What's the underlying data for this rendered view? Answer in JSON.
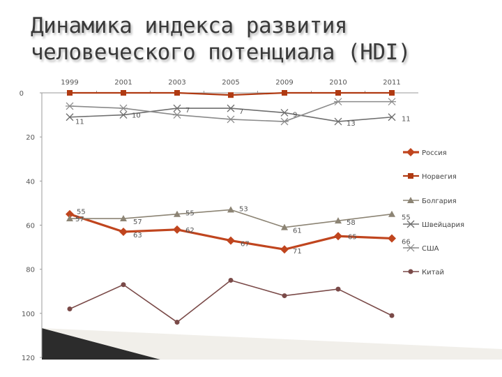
{
  "title_line1": "Динамика индекса развития",
  "title_line2": "человеческого потенциала (HDI)",
  "chart_data": {
    "type": "line",
    "categories": [
      "1999",
      "2001",
      "2003",
      "2005",
      "2009",
      "2010",
      "2011"
    ],
    "y_ticks": [
      0,
      20,
      40,
      60,
      80,
      100,
      120
    ],
    "ylim": [
      0,
      120
    ],
    "y_axis_reversed": true,
    "x_axis_position": "top",
    "legend_position": "right",
    "grid": false,
    "series": [
      {
        "name": "Россия",
        "color": "#c0451e",
        "marker": "diamond",
        "values": [
          55,
          63,
          62,
          67,
          71,
          65,
          66
        ],
        "labels": [
          "55",
          "63",
          "62",
          "67",
          "71",
          "65",
          "66"
        ]
      },
      {
        "name": "Норвегия",
        "color": "#b03a12",
        "marker": "square",
        "values": [
          0,
          0,
          0,
          1,
          0,
          0,
          0
        ]
      },
      {
        "name": "Болгария",
        "color": "#8c8474",
        "marker": "triangle",
        "values": [
          57,
          57,
          55,
          53,
          61,
          58,
          55
        ],
        "labels": [
          "57",
          "57",
          "55",
          "53",
          "61",
          "58",
          "55"
        ]
      },
      {
        "name": "Швейцария",
        "color": "#6e6e6e",
        "marker": "x",
        "values": [
          11,
          10,
          7,
          7,
          9,
          13,
          11
        ],
        "labels": [
          "11",
          "10",
          "7",
          "7",
          "9",
          "13",
          "11"
        ]
      },
      {
        "name": "США",
        "color": "#8a8a8a",
        "marker": "star",
        "values": [
          6,
          7,
          10,
          12,
          13,
          4,
          4
        ]
      },
      {
        "name": "Китай",
        "color": "#7a4a48",
        "marker": "circle",
        "values": [
          98,
          87,
          104,
          85,
          92,
          89,
          101
        ]
      }
    ]
  }
}
